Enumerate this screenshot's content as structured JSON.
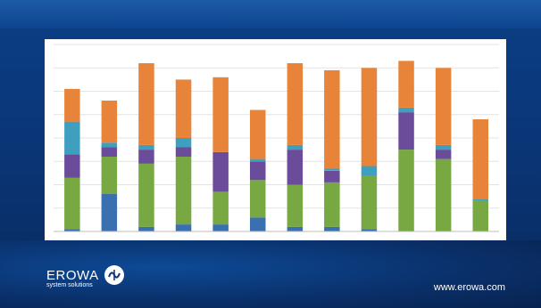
{
  "slide": {
    "brand_name": "EROWA",
    "brand_tagline": "system solutions",
    "website": "www.erowa.com",
    "colors": {
      "background": "#0a3677",
      "banner": "#1c5aa8",
      "panel": "#ffffff"
    }
  },
  "chart_data": {
    "type": "bar",
    "stacked": true,
    "categories": [
      "",
      "",
      "",
      "",
      "",
      "",
      "",
      "",
      "",
      "",
      "",
      ""
    ],
    "ylim": [
      0,
      8
    ],
    "grid": true,
    "legend": "none",
    "series": [
      {
        "color": "#3a6fb0",
        "values": [
          0.1,
          1.6,
          0.2,
          0.3,
          0.3,
          0.6,
          0.2,
          0.2,
          0.1,
          0.0,
          0.0,
          0.0
        ]
      },
      {
        "color": "#77a842",
        "values": [
          2.2,
          1.6,
          2.7,
          2.9,
          1.4,
          1.6,
          1.8,
          1.9,
          2.3,
          3.5,
          3.1,
          1.3
        ]
      },
      {
        "color": "#6b4c9a",
        "values": [
          1.0,
          0.4,
          0.6,
          0.4,
          1.7,
          0.8,
          1.5,
          0.5,
          0.0,
          1.6,
          0.4,
          0.0
        ]
      },
      {
        "color": "#3f9fbf",
        "values": [
          1.4,
          0.2,
          0.2,
          0.4,
          0.0,
          0.1,
          0.2,
          0.1,
          0.4,
          0.2,
          0.2,
          0.1
        ]
      },
      {
        "color": "#e8843a",
        "values": [
          1.4,
          1.8,
          3.5,
          2.5,
          3.2,
          2.1,
          3.5,
          4.2,
          4.2,
          2.0,
          3.3,
          3.4
        ]
      }
    ]
  }
}
